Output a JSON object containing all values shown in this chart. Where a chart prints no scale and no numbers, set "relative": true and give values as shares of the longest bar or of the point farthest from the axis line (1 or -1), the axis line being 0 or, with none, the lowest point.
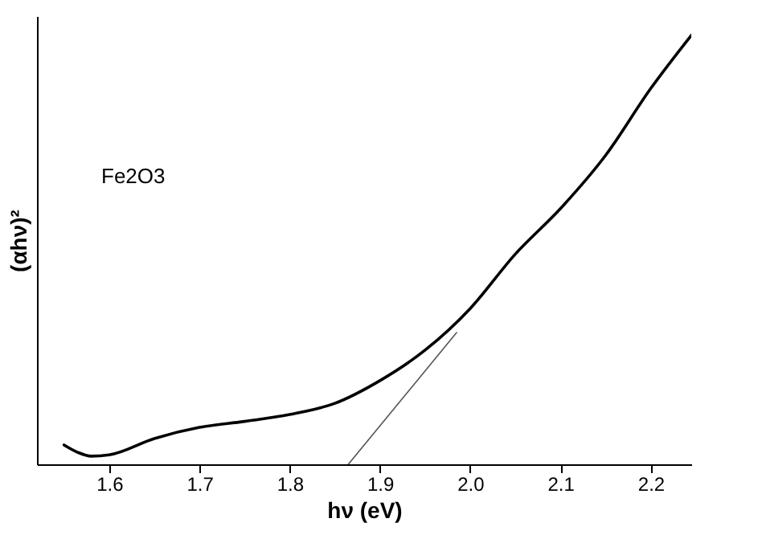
{
  "chart_data": {
    "type": "line",
    "xlabel": "hν (eV)",
    "ylabel": "(αhν)²",
    "relative": true,
    "xlim": [
      1.52,
      2.245
    ],
    "xticks": [
      1.6,
      1.7,
      1.8,
      1.9,
      {
        "value": 2,
        "label": "2.0"
      },
      2.1,
      2.2
    ],
    "annotations": [
      "Fe2O3"
    ],
    "grid": false,
    "series": [
      {
        "color": "#000000",
        "x": [
          1.55,
          1.565,
          1.58,
          1.6,
          1.65,
          1.7,
          1.75,
          1.8,
          1.85,
          1.9,
          1.95,
          2.0,
          2.05,
          2.1,
          2.15,
          2.2,
          2.245
        ],
        "values": [
          0.045,
          0.028,
          0.019,
          0.022,
          0.06,
          0.086,
          0.1,
          0.116,
          0.142,
          0.195,
          0.266,
          0.363,
          0.49,
          0.596,
          0.72,
          0.876,
          1.0
        ]
      },
      {
        "type": "line",
        "color": "#555555",
        "x": [
          1.865,
          1.985
        ],
        "values": [
          0,
          0.307
        ]
      }
    ]
  }
}
